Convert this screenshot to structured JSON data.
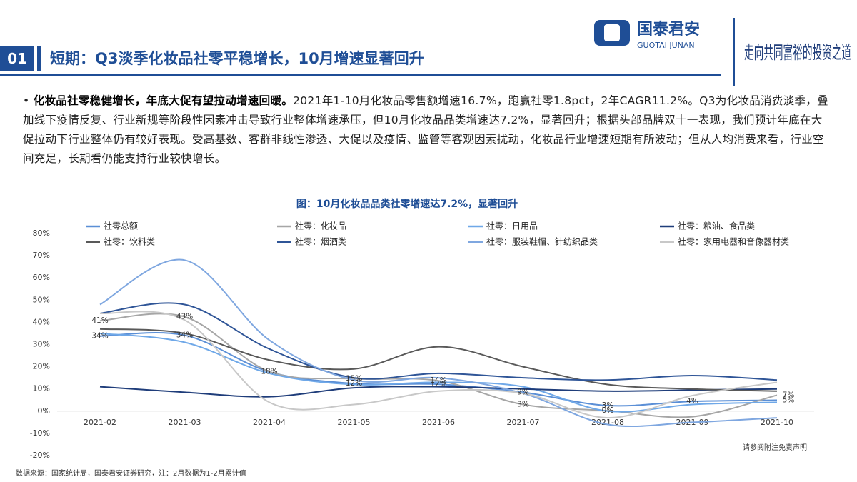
{
  "header": {
    "section": "01",
    "title": "短期：Q3淡季化妆品社零平稳增长，10月增速显著回升"
  },
  "logo": {
    "name": "国泰君安",
    "english": "GUOTAI JUNAN",
    "slogan": "走向共同富裕的投资之道"
  },
  "body": {
    "bold": "化妆品社零稳健增长，年底大促有望拉动增速回暖。",
    "text": "2021年1-10月化妆品零售额增速16.7%，跑赢社零1.8pct，2年CAGR11.2%。Q3为化妆品消费淡季，叠加线下疫情反复、行业新规等阶段性因素冲击导致行业整体增速承压，但10月化妆品品类增速达7.2%，显著回升；根据头部品牌双十一表现，我们预计年底在大促拉动下行业整体仍有较好表现。受高基数、客群非线性渗透、大促以及疫情、监管等客观因素扰动，化妆品行业增速短期有所波动；但从人均消费来看，行业空间充足，长期看仍能支持行业较快增长。"
  },
  "chart_data": {
    "type": "line",
    "title": "图：10月化妆品品类社零增速达7.2%，显著回升",
    "categories": [
      "2021-02",
      "2021-03",
      "2021-04",
      "2021-05",
      "2021-06",
      "2021-07",
      "2021-08",
      "2021-09",
      "2021-10"
    ],
    "series": [
      {
        "name": "社零总额",
        "color": "#5b8fd6",
        "values": [
          33.8,
          34.2,
          17.7,
          12.4,
          12.1,
          8.5,
          2.5,
          4.4,
          4.9
        ],
        "value_labels": [
          "34%",
          "34%",
          null,
          "12%",
          "12%",
          "9%",
          "3%",
          "4%",
          "5%"
        ]
      },
      {
        "name": "社零：化妆品",
        "color": "#a6a6a6",
        "values": [
          40.7,
          42.5,
          17.8,
          14.6,
          13.7,
          3,
          0.2,
          -2.5,
          7.2
        ],
        "value_labels": [
          "41%",
          "43%",
          "18%",
          "15%",
          "14%",
          "3%",
          "0%",
          null,
          "7%"
        ]
      },
      {
        "name": "社零：日用品",
        "color": "#6fa8e8",
        "values": [
          35,
          31,
          17,
          12,
          13,
          11,
          0,
          3,
          4
        ]
      },
      {
        "name": "社零：粮油、食品类",
        "color": "#1f3d7a",
        "values": [
          11,
          8.5,
          6.5,
          10.5,
          11,
          10,
          9,
          9.5,
          10
        ]
      },
      {
        "name": "社零：饮料类",
        "color": "#595959",
        "values": [
          37,
          35,
          23,
          19,
          29,
          20,
          12,
          10,
          9
        ]
      },
      {
        "name": "社零：烟酒类",
        "color": "#2f5597",
        "values": [
          44,
          48,
          28,
          15,
          17,
          15,
          14,
          16,
          14
        ]
      },
      {
        "name": "社零：服装鞋帽、针纺织品类",
        "color": "#7fa7e0",
        "values": [
          48,
          68,
          32,
          14,
          15,
          8,
          -6,
          -5,
          -3
        ]
      },
      {
        "name": "社零：家用电器和音像器材类",
        "color": "#c8c8c8",
        "values": [
          44,
          41,
          4,
          3,
          9,
          8,
          -3,
          7,
          13
        ]
      }
    ],
    "ylim": [
      -20,
      80
    ],
    "yticks": [
      {
        "value": -20,
        "label": "-20%"
      },
      {
        "value": -10,
        "label": "-10%"
      },
      {
        "value": 0,
        "label": "0%"
      },
      {
        "value": 10,
        "label": "10%"
      },
      {
        "value": 20,
        "label": "20%"
      },
      {
        "value": 30,
        "label": "30%"
      },
      {
        "value": 40,
        "label": "40%"
      },
      {
        "value": 50,
        "label": "50%"
      },
      {
        "value": 60,
        "label": "60%"
      },
      {
        "value": 70,
        "label": "70%"
      },
      {
        "value": 80,
        "label": "80%"
      }
    ],
    "grid": false
  },
  "footer": {
    "disclaimer": "请参阅附注免责声明",
    "source": "数据来源：国家统计局，国泰君安证券研究，注：2月数据为1-2月累计值"
  }
}
